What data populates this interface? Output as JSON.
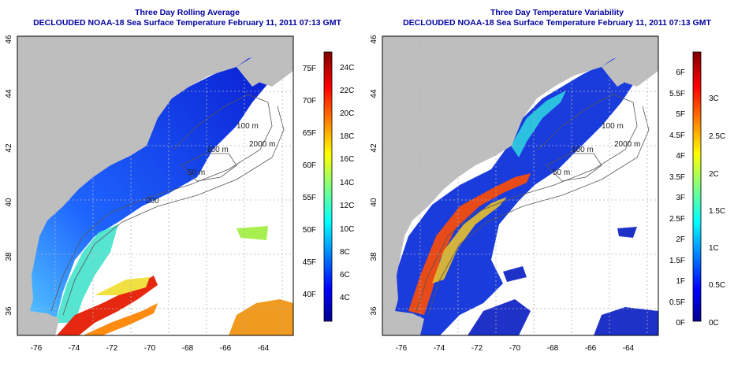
{
  "maps": [
    {
      "title": "Three Day Rolling Average",
      "subtitle": "DECLOUDED NOAA-18 Sea Surface Temperature February 11, 2011 07:13 GMT",
      "x_ticks": [
        "-76",
        "-74",
        "-72",
        "-70",
        "-68",
        "-66",
        "-64"
      ],
      "y_ticks": [
        "36",
        "38",
        "40",
        "42",
        "44",
        "46"
      ],
      "contour_labels": [
        "100 m",
        "2000 m",
        "100 m",
        "50 m",
        "200"
      ],
      "colorbar": {
        "type": "jet",
        "c_labels": [
          "24C",
          "22C",
          "20C",
          "18C",
          "16C",
          "14C",
          "12C",
          "10C",
          "8C",
          "6C",
          "4C"
        ],
        "f_labels": [
          "75F",
          "70F",
          "65F",
          "60F",
          "55F",
          "50F",
          "45F",
          "40F"
        ]
      }
    },
    {
      "title": "Three Day Temperature Variability",
      "subtitle": "DECLOUDED NOAA-18 Sea Surface Temperature February 11, 2011 07:13 GMT",
      "x_ticks": [
        "-76",
        "-74",
        "-72",
        "-70",
        "-68",
        "-66",
        "-64"
      ],
      "y_ticks": [
        "36",
        "38",
        "40",
        "42",
        "44",
        "46"
      ],
      "contour_labels": [
        "100 m",
        "2000 m",
        "100 m",
        "50 m"
      ],
      "colorbar": {
        "type": "jet",
        "f_labels": [
          "6F",
          "5.5F",
          "5F",
          "4.5F",
          "4F",
          "3.5F",
          "3F",
          "2.5F",
          "2F",
          "1.5F",
          "1F",
          "0.5F",
          "0F"
        ],
        "c_labels": [
          "3C",
          "2.5C",
          "2C",
          "1.5C",
          "1C",
          "0.5C",
          "0C"
        ]
      }
    }
  ],
  "colors": {
    "land": "#bebebe",
    "ocean": "#ffffff",
    "title": "#0000a0",
    "grid": "#b4b4b4"
  }
}
